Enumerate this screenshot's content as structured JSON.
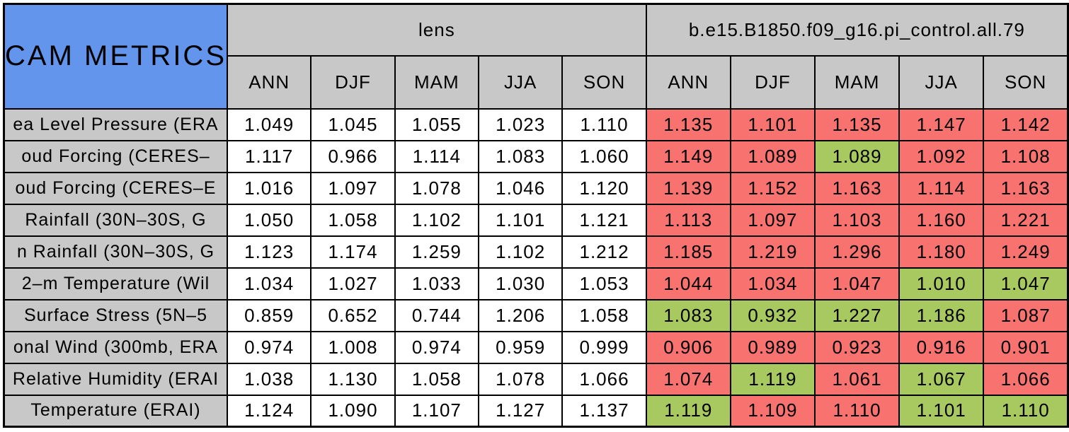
{
  "title": "CAM METRICS",
  "groups": [
    {
      "label": "lens"
    },
    {
      "label": "b.e15.B1850.f09_g16.pi_control.all.79"
    }
  ],
  "season_columns": [
    "ANN",
    "DJF",
    "MAM",
    "JJA",
    "SON"
  ],
  "colors": {
    "corner_bg": "#6495ed",
    "header_bg": "#c8c8c8",
    "cell_bg": "#ffffff",
    "fail_red": "#f8736f",
    "pass_green": "#a8c860",
    "border": "#000000",
    "text": "#000000"
  },
  "rows": [
    {
      "label": "ea Level Pressure (ERA",
      "lens": [
        "1.049",
        "1.045",
        "1.055",
        "1.023",
        "1.110"
      ],
      "control": [
        {
          "value": "1.135",
          "flag": "red"
        },
        {
          "value": "1.101",
          "flag": "red"
        },
        {
          "value": "1.135",
          "flag": "red"
        },
        {
          "value": "1.147",
          "flag": "red"
        },
        {
          "value": "1.142",
          "flag": "red"
        }
      ]
    },
    {
      "label": "oud Forcing (CERES–",
      "lens": [
        "1.117",
        "0.966",
        "1.114",
        "1.083",
        "1.060"
      ],
      "control": [
        {
          "value": "1.149",
          "flag": "red"
        },
        {
          "value": "1.089",
          "flag": "red"
        },
        {
          "value": "1.089",
          "flag": "green"
        },
        {
          "value": "1.092",
          "flag": "red"
        },
        {
          "value": "1.108",
          "flag": "red"
        }
      ]
    },
    {
      "label": "oud Forcing (CERES–E",
      "lens": [
        "1.016",
        "1.097",
        "1.078",
        "1.046",
        "1.120"
      ],
      "control": [
        {
          "value": "1.139",
          "flag": "red"
        },
        {
          "value": "1.152",
          "flag": "red"
        },
        {
          "value": "1.163",
          "flag": "red"
        },
        {
          "value": "1.114",
          "flag": "red"
        },
        {
          "value": "1.163",
          "flag": "red"
        }
      ]
    },
    {
      "label": "Rainfall (30N–30S, G",
      "lens": [
        "1.050",
        "1.058",
        "1.102",
        "1.101",
        "1.121"
      ],
      "control": [
        {
          "value": "1.113",
          "flag": "red"
        },
        {
          "value": "1.097",
          "flag": "red"
        },
        {
          "value": "1.103",
          "flag": "red"
        },
        {
          "value": "1.160",
          "flag": "red"
        },
        {
          "value": "1.221",
          "flag": "red"
        }
      ]
    },
    {
      "label": "n Rainfall (30N–30S, G",
      "lens": [
        "1.123",
        "1.174",
        "1.259",
        "1.102",
        "1.212"
      ],
      "control": [
        {
          "value": "1.185",
          "flag": "red"
        },
        {
          "value": "1.219",
          "flag": "red"
        },
        {
          "value": "1.296",
          "flag": "red"
        },
        {
          "value": "1.180",
          "flag": "red"
        },
        {
          "value": "1.249",
          "flag": "red"
        }
      ]
    },
    {
      "label": "2–m Temperature (Wil",
      "lens": [
        "1.034",
        "1.027",
        "1.033",
        "1.030",
        "1.053"
      ],
      "control": [
        {
          "value": "1.044",
          "flag": "red"
        },
        {
          "value": "1.034",
          "flag": "red"
        },
        {
          "value": "1.047",
          "flag": "red"
        },
        {
          "value": "1.010",
          "flag": "green"
        },
        {
          "value": "1.047",
          "flag": "green"
        }
      ]
    },
    {
      "label": "Surface Stress (5N–5",
      "lens": [
        "0.859",
        "0.652",
        "0.744",
        "1.206",
        "1.058"
      ],
      "control": [
        {
          "value": "1.083",
          "flag": "green"
        },
        {
          "value": "0.932",
          "flag": "green"
        },
        {
          "value": "1.227",
          "flag": "green"
        },
        {
          "value": "1.186",
          "flag": "green"
        },
        {
          "value": "1.087",
          "flag": "red"
        }
      ]
    },
    {
      "label": "onal Wind (300mb, ERA",
      "lens": [
        "0.974",
        "1.008",
        "0.974",
        "0.959",
        "0.999"
      ],
      "control": [
        {
          "value": "0.906",
          "flag": "red"
        },
        {
          "value": "0.989",
          "flag": "red"
        },
        {
          "value": "0.923",
          "flag": "red"
        },
        {
          "value": "0.916",
          "flag": "red"
        },
        {
          "value": "0.901",
          "flag": "red"
        }
      ]
    },
    {
      "label": "Relative Humidity (ERAI",
      "lens": [
        "1.038",
        "1.130",
        "1.058",
        "1.078",
        "1.066"
      ],
      "control": [
        {
          "value": "1.074",
          "flag": "red"
        },
        {
          "value": "1.119",
          "flag": "green"
        },
        {
          "value": "1.061",
          "flag": "red"
        },
        {
          "value": "1.067",
          "flag": "green"
        },
        {
          "value": "1.066",
          "flag": "red"
        }
      ]
    },
    {
      "label": "Temperature (ERAI)",
      "lens": [
        "1.124",
        "1.090",
        "1.107",
        "1.127",
        "1.137"
      ],
      "control": [
        {
          "value": "1.119",
          "flag": "green"
        },
        {
          "value": "1.109",
          "flag": "red"
        },
        {
          "value": "1.110",
          "flag": "red"
        },
        {
          "value": "1.101",
          "flag": "green"
        },
        {
          "value": "1.110",
          "flag": "green"
        }
      ]
    }
  ],
  "chart_data": {
    "type": "table",
    "title": "CAM METRICS",
    "column_groups": [
      "lens",
      "b.e15.B1850.f09_g16.pi_control.all.79"
    ],
    "columns": [
      "ANN",
      "DJF",
      "MAM",
      "JJA",
      "SON",
      "ANN",
      "DJF",
      "MAM",
      "JJA",
      "SON"
    ],
    "rows": [
      {
        "label": "ea Level Pressure (ERA",
        "values": [
          1.049,
          1.045,
          1.055,
          1.023,
          1.11,
          1.135,
          1.101,
          1.135,
          1.147,
          1.142
        ],
        "control_cell_colors": [
          "red",
          "red",
          "red",
          "red",
          "red"
        ]
      },
      {
        "label": "oud Forcing (CERES–",
        "values": [
          1.117,
          0.966,
          1.114,
          1.083,
          1.06,
          1.149,
          1.089,
          1.089,
          1.092,
          1.108
        ],
        "control_cell_colors": [
          "red",
          "red",
          "green",
          "red",
          "red"
        ]
      },
      {
        "label": "oud Forcing (CERES–E",
        "values": [
          1.016,
          1.097,
          1.078,
          1.046,
          1.12,
          1.139,
          1.152,
          1.163,
          1.114,
          1.163
        ],
        "control_cell_colors": [
          "red",
          "red",
          "red",
          "red",
          "red"
        ]
      },
      {
        "label": "Rainfall (30N–30S, G",
        "values": [
          1.05,
          1.058,
          1.102,
          1.101,
          1.121,
          1.113,
          1.097,
          1.103,
          1.16,
          1.221
        ],
        "control_cell_colors": [
          "red",
          "red",
          "red",
          "red",
          "red"
        ]
      },
      {
        "label": "n Rainfall (30N–30S, G",
        "values": [
          1.123,
          1.174,
          1.259,
          1.102,
          1.212,
          1.185,
          1.219,
          1.296,
          1.18,
          1.249
        ],
        "control_cell_colors": [
          "red",
          "red",
          "red",
          "red",
          "red"
        ]
      },
      {
        "label": "2–m Temperature (Wil",
        "values": [
          1.034,
          1.027,
          1.033,
          1.03,
          1.053,
          1.044,
          1.034,
          1.047,
          1.01,
          1.047
        ],
        "control_cell_colors": [
          "red",
          "red",
          "red",
          "green",
          "green"
        ]
      },
      {
        "label": "Surface Stress (5N–5",
        "values": [
          0.859,
          0.652,
          0.744,
          1.206,
          1.058,
          1.083,
          0.932,
          1.227,
          1.186,
          1.087
        ],
        "control_cell_colors": [
          "green",
          "green",
          "green",
          "green",
          "red"
        ]
      },
      {
        "label": "onal Wind (300mb, ERA",
        "values": [
          0.974,
          1.008,
          0.974,
          0.959,
          0.999,
          0.906,
          0.989,
          0.923,
          0.916,
          0.901
        ],
        "control_cell_colors": [
          "red",
          "red",
          "red",
          "red",
          "red"
        ]
      },
      {
        "label": "Relative Humidity (ERAI",
        "values": [
          1.038,
          1.13,
          1.058,
          1.078,
          1.066,
          1.074,
          1.119,
          1.061,
          1.067,
          1.066
        ],
        "control_cell_colors": [
          "red",
          "green",
          "red",
          "green",
          "red"
        ]
      },
      {
        "label": "Temperature (ERAI)",
        "values": [
          1.124,
          1.09,
          1.107,
          1.127,
          1.137,
          1.119,
          1.109,
          1.11,
          1.101,
          1.11
        ],
        "control_cell_colors": [
          "green",
          "red",
          "red",
          "green",
          "green"
        ]
      }
    ],
    "layout": "first 5 value columns on white background; last 5 value columns highlighted red or green per cell"
  }
}
